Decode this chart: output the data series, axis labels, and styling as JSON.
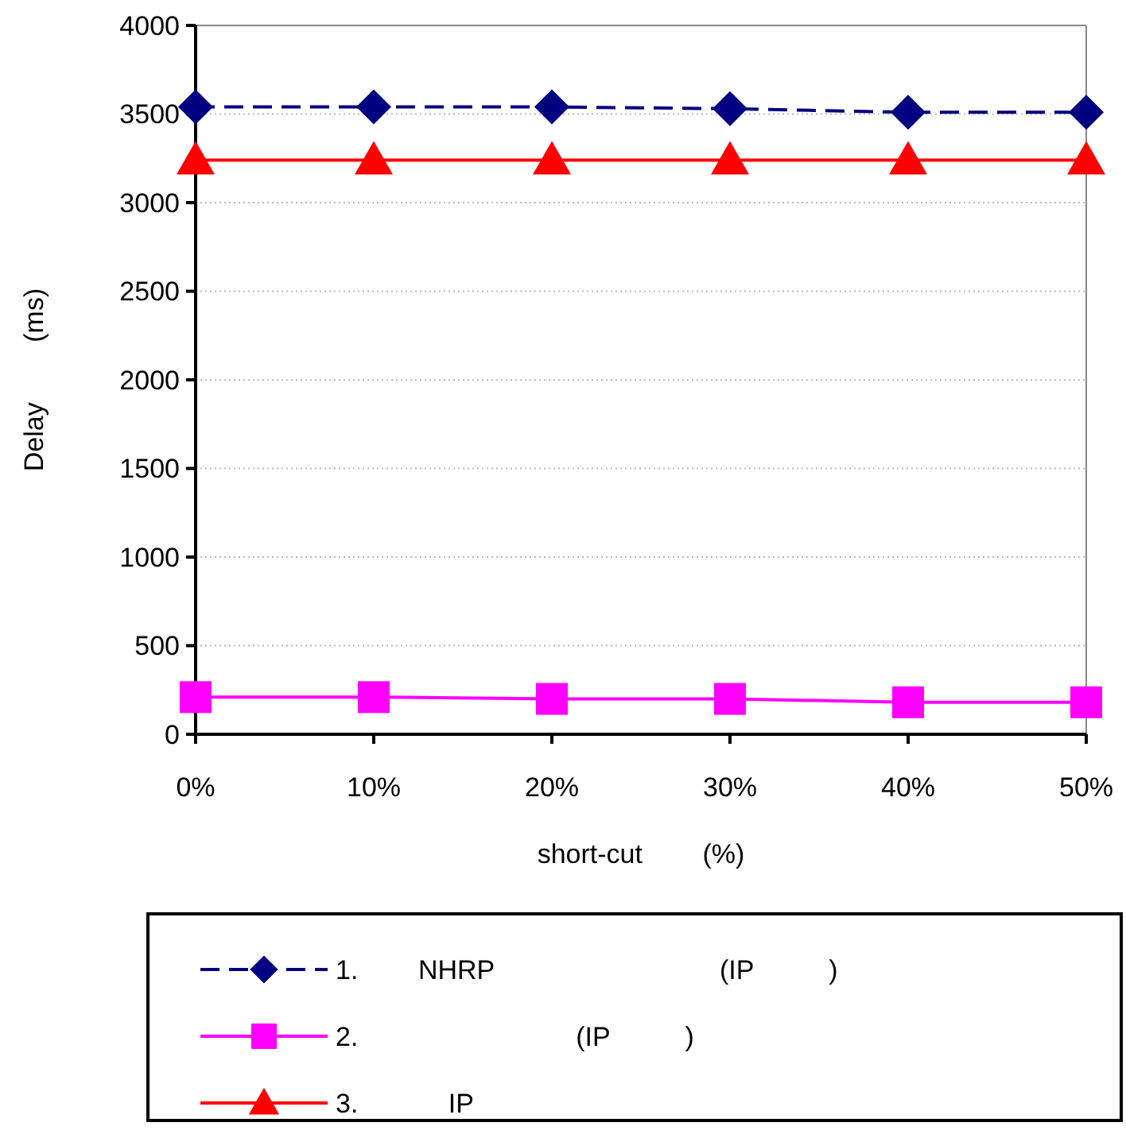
{
  "chart_data": {
    "type": "line",
    "xlabel": "short-cut        (%)",
    "ylabel": "Delay        (ms)",
    "categories": [
      "0%",
      "10%",
      "20%",
      "30%",
      "40%",
      "50%"
    ],
    "series": [
      {
        "name": "1.        NHRP                              (IP          )",
        "color": "#000080",
        "values": [
          3540,
          3540,
          3540,
          3530,
          3510,
          3510
        ],
        "marker": "diamond",
        "line_style": "dashed"
      },
      {
        "name": "2.                             (IP          )",
        "color": "#ff00ff",
        "values": [
          210,
          210,
          200,
          200,
          180,
          180
        ],
        "marker": "square",
        "line_style": "solid"
      },
      {
        "name": "3.            IP",
        "color": "#ff0000",
        "values": [
          3240,
          3240,
          3240,
          3240,
          3240,
          3240
        ],
        "marker": "triangle",
        "line_style": "solid"
      }
    ],
    "ylim": [
      0,
      4000
    ],
    "yticks": [
      0,
      500,
      1000,
      1500,
      2000,
      2500,
      3000,
      3500,
      4000
    ],
    "grid": "y",
    "legend": "bottom"
  }
}
